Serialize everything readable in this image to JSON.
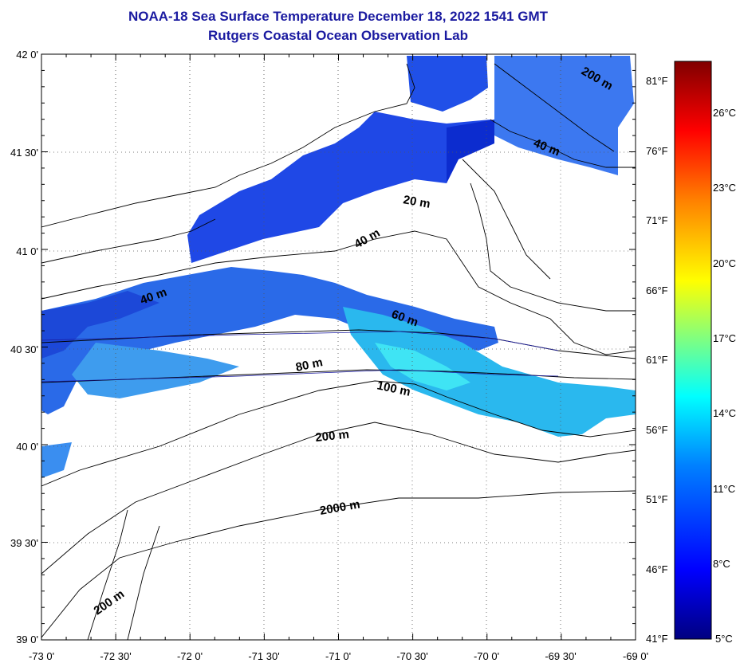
{
  "title": "NOAA-18 Sea Surface Temperature December 18, 2022 1541 GMT",
  "subtitle": "Rutgers Coastal Ocean Observation Lab",
  "lat_labels": [
    "42 0'",
    "41 30'",
    "41 0'",
    "40 30'",
    "40 0'",
    "39 30'",
    "39 0'"
  ],
  "lon_labels": [
    "-73 0'",
    "-72 30'",
    "-72 0'",
    "-71 30'",
    "-71 0'",
    "-70 30'",
    "-70 0'",
    "-69 30'",
    "-69 0'"
  ],
  "contour_labels": [
    "200 m",
    "40 m",
    "20 m",
    "40 m",
    "40 m",
    "60 m",
    "80 m",
    "100 m",
    "200 m",
    "2000 m",
    "200 m"
  ],
  "colorbar": {
    "celsius": [
      "26°C",
      "23°C",
      "20°C",
      "17°C",
      "14°C",
      "11°C",
      "8°C",
      "5°C"
    ],
    "fahrenheit": [
      "81°F",
      "76°F",
      "71°F",
      "66°F",
      "61°F",
      "56°F",
      "51°F",
      "46°F",
      "41°F"
    ],
    "range_c": [
      5,
      28
    ],
    "colors": [
      "#000080",
      "#0000ff",
      "#0080ff",
      "#00ffff",
      "#80ff80",
      "#ffff00",
      "#ff8000",
      "#ff0000",
      "#800000"
    ]
  },
  "map_extent": {
    "lon": [
      -73,
      -69
    ],
    "lat": [
      39,
      42
    ]
  }
}
